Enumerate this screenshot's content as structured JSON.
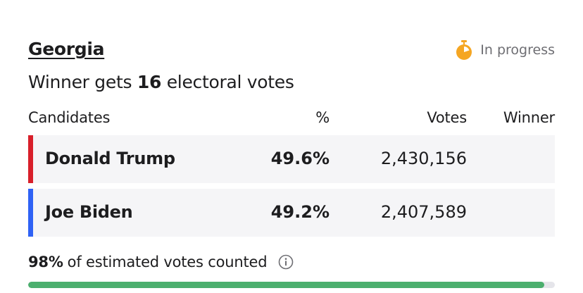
{
  "race": {
    "state": "Georgia",
    "status": "In progress",
    "subtitle_prefix": "Winner gets",
    "electoral_votes": "16",
    "subtitle_suffix": "electoral votes"
  },
  "table": {
    "headers": {
      "candidates": "Candidates",
      "percent": "%",
      "votes": "Votes",
      "winner": "Winner"
    },
    "rows": [
      {
        "name": "Donald Trump",
        "percent": "49.6%",
        "votes": "2,430,156",
        "party_color": "#d81f2a"
      },
      {
        "name": "Joe Biden",
        "percent": "49.2%",
        "votes": "2,407,589",
        "party_color": "#2f62f5"
      }
    ]
  },
  "counted": {
    "percent": "98%",
    "text": "of estimated votes counted",
    "progress": 0.98
  },
  "colors": {
    "status_icon": "#f5a623",
    "progress_fill": "#4caf6e",
    "progress_track": "#e5e5ea"
  },
  "icons": {
    "status": "stopwatch-icon",
    "info": "info-icon"
  }
}
